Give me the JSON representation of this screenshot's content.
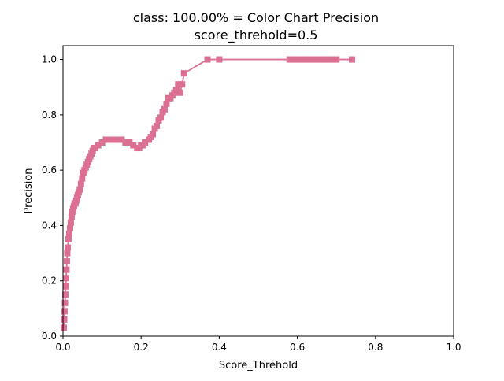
{
  "chart_data": {
    "type": "line",
    "title": "class: 100.00% = Color Chart Precision",
    "subtitle": "score_threhold=0.5",
    "xlabel": "Score_Threhold",
    "ylabel": "Precision",
    "xlim": [
      0,
      1
    ],
    "ylim": [
      0,
      1.05
    ],
    "xticks": [
      "0.0",
      "0.2",
      "0.4",
      "0.6",
      "0.8",
      "1.0"
    ],
    "yticks": [
      "0.0",
      "0.2",
      "0.4",
      "0.6",
      "0.8",
      "1.0"
    ],
    "grid": false,
    "legend": "none",
    "color": "#db7093",
    "marker": "square",
    "series": [
      {
        "x": [
          0.002,
          0.003,
          0.004,
          0.005,
          0.006,
          0.007,
          0.008,
          0.009,
          0.01,
          0.011,
          0.012,
          0.014,
          0.016,
          0.018,
          0.02,
          0.022,
          0.024,
          0.026,
          0.028,
          0.03,
          0.032,
          0.034,
          0.036,
          0.038,
          0.04,
          0.043,
          0.046,
          0.049,
          0.052,
          0.055,
          0.058,
          0.061,
          0.064,
          0.067,
          0.07,
          0.073,
          0.076,
          0.079,
          0.082,
          0.09,
          0.1,
          0.11,
          0.12,
          0.13,
          0.14,
          0.15,
          0.16,
          0.17,
          0.18,
          0.19,
          0.195,
          0.2,
          0.205,
          0.21,
          0.22,
          0.225,
          0.23,
          0.235,
          0.24,
          0.245,
          0.25,
          0.255,
          0.26,
          0.265,
          0.27,
          0.275,
          0.28,
          0.285,
          0.29,
          0.295,
          0.3,
          0.305,
          0.31,
          0.37,
          0.4,
          0.58,
          0.59,
          0.6,
          0.61,
          0.62,
          0.63,
          0.64,
          0.65,
          0.66,
          0.67,
          0.68,
          0.69,
          0.7,
          0.74
        ],
        "y": [
          0.03,
          0.06,
          0.09,
          0.12,
          0.15,
          0.18,
          0.21,
          0.24,
          0.27,
          0.3,
          0.32,
          0.35,
          0.37,
          0.39,
          0.41,
          0.43,
          0.45,
          0.46,
          0.47,
          0.48,
          0.48,
          0.49,
          0.5,
          0.51,
          0.52,
          0.53,
          0.55,
          0.57,
          0.59,
          0.6,
          0.61,
          0.62,
          0.63,
          0.64,
          0.65,
          0.66,
          0.67,
          0.68,
          0.68,
          0.69,
          0.7,
          0.71,
          0.71,
          0.71,
          0.71,
          0.71,
          0.7,
          0.7,
          0.69,
          0.68,
          0.68,
          0.69,
          0.69,
          0.7,
          0.71,
          0.72,
          0.73,
          0.75,
          0.76,
          0.78,
          0.79,
          0.81,
          0.82,
          0.84,
          0.86,
          0.86,
          0.87,
          0.88,
          0.89,
          0.91,
          0.88,
          0.91,
          0.95,
          1.0,
          1.0,
          1.0,
          1.0,
          1.0,
          1.0,
          1.0,
          1.0,
          1.0,
          1.0,
          1.0,
          1.0,
          1.0,
          1.0,
          1.0,
          1.0
        ]
      }
    ]
  }
}
